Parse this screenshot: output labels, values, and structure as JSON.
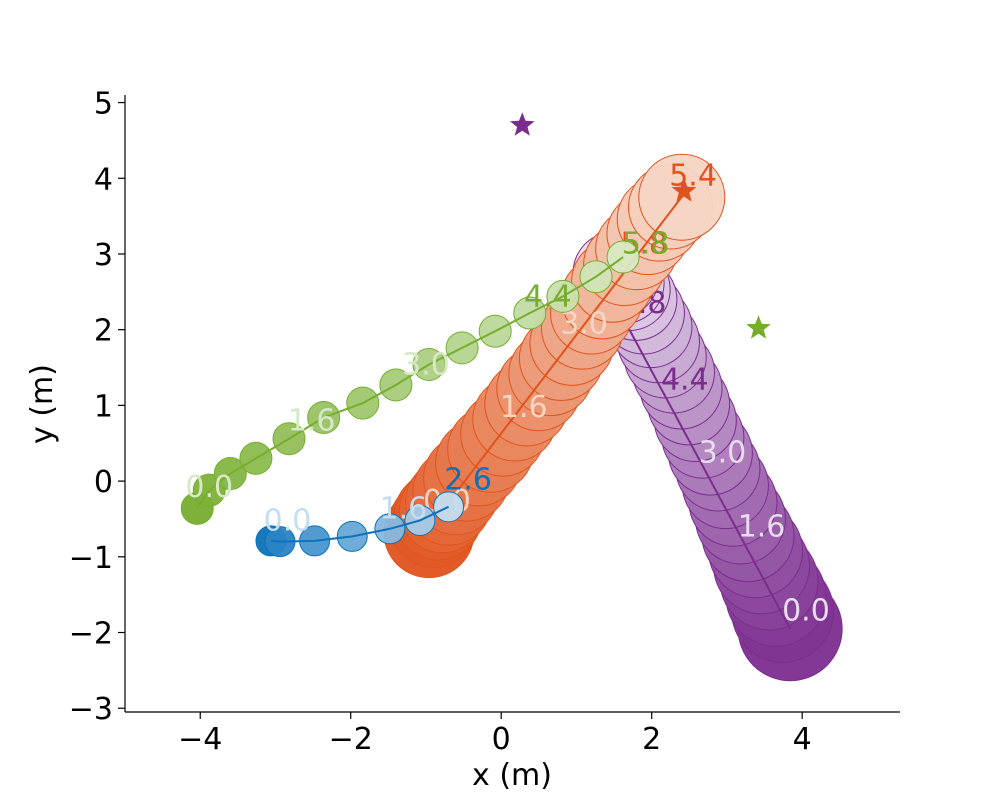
{
  "chart_data": {
    "type": "scatter",
    "title": "",
    "xlabel": "x (m)",
    "ylabel": "y (m)",
    "xlim": [
      -5,
      5.3
    ],
    "ylim": [
      -3.05,
      5.1
    ],
    "xticks": [
      -4,
      -2,
      0,
      2,
      4
    ],
    "yticks": [
      -3,
      -2,
      -1,
      0,
      1,
      2,
      3,
      4,
      5
    ],
    "xtick_labels": [
      "−4",
      "−2",
      "0",
      "2",
      "4"
    ],
    "ytick_labels": [
      "−3",
      "−2",
      "−1",
      "0",
      "1",
      "2",
      "3",
      "4",
      "5"
    ],
    "grid": false,
    "legend": "none",
    "spines": "left-bottom",
    "series": [
      {
        "color": "#7b2d8e",
        "light_color": "#e8dcef",
        "x": [
          3.84,
          3.74,
          3.65,
          3.56,
          3.46,
          3.38,
          3.28,
          3.18,
          3.08,
          2.98,
          2.88,
          2.78,
          2.68,
          2.58,
          2.49,
          2.39,
          2.29,
          2.18,
          2.09,
          1.99,
          1.89,
          1.79,
          1.7,
          1.62,
          1.55,
          1.5
        ],
        "y": [
          -1.95,
          -1.72,
          -1.52,
          -1.32,
          -1.12,
          -0.92,
          -0.72,
          -0.5,
          -0.28,
          -0.06,
          0.16,
          0.37,
          0.58,
          0.8,
          1.02,
          1.23,
          1.44,
          1.64,
          1.84,
          2.04,
          2.22,
          2.4,
          2.53,
          2.62,
          2.7,
          2.75
        ],
        "r": [
          52,
          51,
          50,
          49,
          48,
          47,
          46,
          45,
          44,
          43,
          42,
          42,
          41,
          41,
          41,
          41,
          41,
          41,
          41,
          41,
          41,
          41,
          41,
          41,
          41,
          41
        ],
        "line_x": [
          3.84,
          1.65
        ],
        "line_y": [
          -1.95,
          2.1
        ],
        "labels": [
          {
            "text": "0.0",
            "x": 4.05,
            "y": -1.73,
            "shade": "light"
          },
          {
            "text": "1.6",
            "x": 3.46,
            "y": -0.62,
            "shade": "light"
          },
          {
            "text": "3.0",
            "x": 2.94,
            "y": 0.36,
            "shade": "light"
          },
          {
            "text": "4.4",
            "x": 2.44,
            "y": 1.32,
            "shade": "dark"
          },
          {
            "text": "5.8",
            "x": 1.88,
            "y": 2.33,
            "shade": "dark"
          }
        ],
        "goal": {
          "x": 0.28,
          "y": 4.7
        }
      },
      {
        "color": "#e0531d",
        "light_color": "#f6d5c4",
        "x": [
          -0.96,
          -0.9,
          -0.84,
          -0.78,
          -0.7,
          -0.6,
          -0.46,
          -0.3,
          -0.14,
          0.02,
          0.18,
          0.34,
          0.5,
          0.66,
          0.8,
          0.94,
          1.08,
          1.2,
          1.34,
          1.48,
          1.64,
          1.8,
          1.95,
          2.1,
          2.25,
          2.4
        ],
        "y": [
          -0.68,
          -0.56,
          -0.46,
          -0.38,
          -0.28,
          -0.14,
          0.04,
          0.24,
          0.42,
          0.62,
          0.82,
          1.02,
          1.22,
          1.42,
          1.62,
          1.82,
          2.02,
          2.22,
          2.42,
          2.64,
          2.86,
          3.07,
          3.27,
          3.46,
          3.62,
          3.75
        ],
        "r": [
          45,
          44,
          44,
          43,
          43,
          43,
          43,
          43,
          43,
          42,
          42,
          42,
          42,
          42,
          42,
          42,
          41,
          41,
          41,
          41,
          41,
          41,
          41,
          42,
          42,
          43
        ],
        "line_x": [
          -0.7,
          2.45
        ],
        "line_y": [
          -0.28,
          3.82
        ],
        "labels": [
          {
            "text": "0.0",
            "x": -0.72,
            "y": -0.28,
            "shade": "light"
          },
          {
            "text": "1.6",
            "x": 0.3,
            "y": 0.96,
            "shade": "light"
          },
          {
            "text": "3.0",
            "x": 1.1,
            "y": 2.06,
            "shade": "light"
          },
          {
            "text": "5.4",
            "x": 2.55,
            "y": 4.02,
            "shade": "dark"
          },
          {
            "text": "5.8",
            "x": 1.9,
            "y": 3.12,
            "shade": "dark"
          }
        ],
        "goal": {
          "x": 2.43,
          "y": 3.83
        }
      },
      {
        "color": "#76ad2e",
        "light_color": "#d7e9c4",
        "x": [
          -4.04,
          -3.88,
          -3.6,
          -3.26,
          -2.82,
          -2.36,
          -1.84,
          -1.4,
          -0.96,
          -0.52,
          -0.08,
          0.38,
          0.82,
          1.26,
          1.62
        ],
        "y": [
          -0.36,
          -0.12,
          0.1,
          0.3,
          0.56,
          0.84,
          1.03,
          1.27,
          1.54,
          1.76,
          1.98,
          2.22,
          2.44,
          2.7,
          2.96
        ],
        "r": [
          16,
          16,
          16,
          16,
          16,
          16,
          16,
          16,
          16,
          16,
          16,
          16,
          16,
          16,
          16
        ],
        "line_x": [
          -4.04,
          -3.88,
          -3.6,
          -3.26,
          -2.82,
          -2.36,
          -1.84,
          -1.4,
          -0.96,
          -0.52,
          -0.08,
          0.38,
          0.82,
          1.26,
          1.62
        ],
        "line_y": [
          -0.36,
          -0.12,
          0.1,
          0.3,
          0.56,
          0.84,
          1.03,
          1.27,
          1.54,
          1.76,
          1.98,
          2.22,
          2.44,
          2.7,
          2.96
        ],
        "labels": [
          {
            "text": "0.0",
            "x": -3.88,
            "y": -0.1,
            "shade": "light"
          },
          {
            "text": "1.6",
            "x": -2.52,
            "y": 0.78,
            "shade": "light"
          },
          {
            "text": "3.0",
            "x": -1.0,
            "y": 1.52,
            "shade": "light"
          },
          {
            "text": "4.4",
            "x": 0.62,
            "y": 2.42,
            "shade": "dark"
          },
          {
            "text": "5.8",
            "x": 1.92,
            "y": 3.12,
            "shade": "dark"
          }
        ],
        "goal": {
          "x": 3.42,
          "y": 2.02
        }
      },
      {
        "color": "#0b72bb",
        "light_color": "#c3ddf1",
        "x": [
          -3.06,
          -2.94,
          -2.48,
          -1.98,
          -1.48,
          -1.08,
          -0.7
        ],
        "y": [
          -0.79,
          -0.8,
          -0.79,
          -0.73,
          -0.63,
          -0.52,
          -0.34
        ],
        "r": [
          15,
          15,
          15,
          15,
          15,
          15,
          15
        ],
        "line_x": [
          -3.06,
          -2.94,
          -2.48,
          -1.98,
          -1.48,
          -1.08,
          -0.7
        ],
        "line_y": [
          -0.79,
          -0.8,
          -0.79,
          -0.73,
          -0.63,
          -0.52,
          -0.34
        ],
        "labels": [
          {
            "text": "0.0",
            "x": -2.84,
            "y": -0.54,
            "shade": "light"
          },
          {
            "text": "1.6",
            "x": -1.3,
            "y": -0.38,
            "shade": "light"
          },
          {
            "text": "2.6",
            "x": -0.44,
            "y": 0.0,
            "shade": "dark"
          }
        ],
        "goal": null
      }
    ]
  }
}
